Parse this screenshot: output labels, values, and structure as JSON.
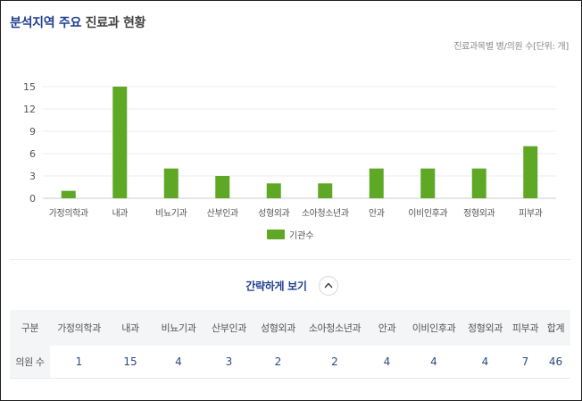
{
  "header": {
    "title_strong": "분석지역 주요",
    "title_rest": "진료과 현황",
    "unit_note": "진료과목별 병/의원 수[단위: 개]"
  },
  "chart_data": {
    "type": "bar",
    "title": "",
    "xlabel": "",
    "ylabel": "",
    "categories": [
      "가정의학과",
      "내과",
      "비뇨기과",
      "산부인과",
      "성형외과",
      "소아청소년과",
      "안과",
      "이비인후과",
      "정형외과",
      "피부과"
    ],
    "series": [
      {
        "name": "기관수",
        "values": [
          1,
          15,
          4,
          3,
          2,
          2,
          4,
          4,
          4,
          7
        ]
      }
    ],
    "yticks": [
      0,
      3,
      6,
      9,
      12,
      15
    ],
    "ylim": [
      0,
      15
    ],
    "grid": true,
    "legend": "bottom-center",
    "colors": {
      "bar": "#5ea826",
      "grid": "#eeeeee",
      "axis": "#cccccc"
    }
  },
  "toggle": {
    "label": "간략하게 보기"
  },
  "table": {
    "headers": [
      "구분",
      "가정의학과",
      "내과",
      "비뇨기과",
      "산부인과",
      "성형외과",
      "소아청소년과",
      "안과",
      "이비인후과",
      "정형외과",
      "피부과",
      "합계"
    ],
    "row_label": "의원 수",
    "values": [
      "1",
      "15",
      "4",
      "3",
      "2",
      "2",
      "4",
      "4",
      "4",
      "7",
      "46"
    ]
  },
  "colors": {
    "accent": "#1f3f8f",
    "bar": "#5ea826",
    "header_bg": "#f4f5f7"
  }
}
